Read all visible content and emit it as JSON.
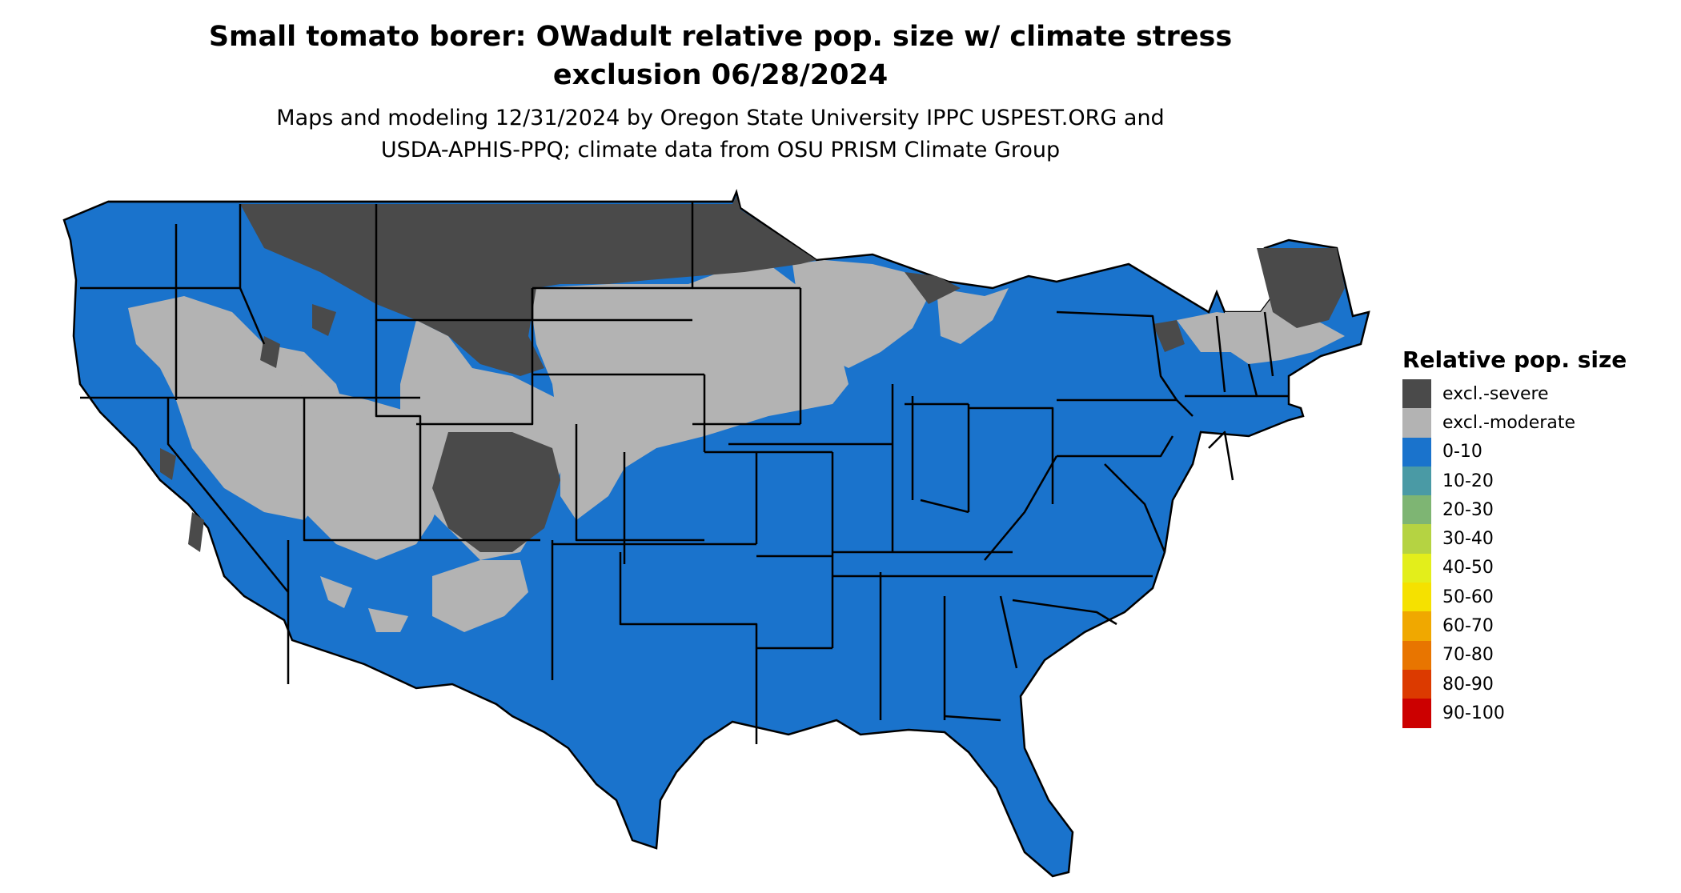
{
  "title": {
    "line1": "Small tomato borer: OWadult relative pop. size w/ climate stress",
    "line2": "exclusion 06/28/2024"
  },
  "subtitle": {
    "line1": "Maps and modeling 12/31/2024 by Oregon State University IPPC USPEST.ORG and",
    "line2": "USDA-APHIS-PPQ; climate data from OSU PRISM Climate Group"
  },
  "map": {
    "category_shown": "0-10",
    "excluded_severe_regions": [
      "northern Rockies",
      "northern Plains",
      "upper Great Lakes",
      "northern Maine"
    ],
    "excluded_moderate_regions": [
      "Great Basin",
      "central Plains",
      "upper Midwest",
      "northern New England",
      "southern Rockies"
    ]
  },
  "legend": {
    "title": "Relative pop. size",
    "items": [
      {
        "label": "excl.-severe",
        "color": "#4a4a4a"
      },
      {
        "label": "excl.-moderate",
        "color": "#b3b3b3"
      },
      {
        "label": "0-10",
        "color": "#1a73cc"
      },
      {
        "label": "10-20",
        "color": "#4a9aa5"
      },
      {
        "label": "20-30",
        "color": "#7eb573"
      },
      {
        "label": "30-40",
        "color": "#b5d342"
      },
      {
        "label": "40-50",
        "color": "#e3ee1b"
      },
      {
        "label": "50-60",
        "color": "#f5e100"
      },
      {
        "label": "60-70",
        "color": "#f0a800"
      },
      {
        "label": "70-80",
        "color": "#e87500"
      },
      {
        "label": "80-90",
        "color": "#dc3a00"
      },
      {
        "label": "90-100",
        "color": "#cc0000"
      }
    ]
  }
}
